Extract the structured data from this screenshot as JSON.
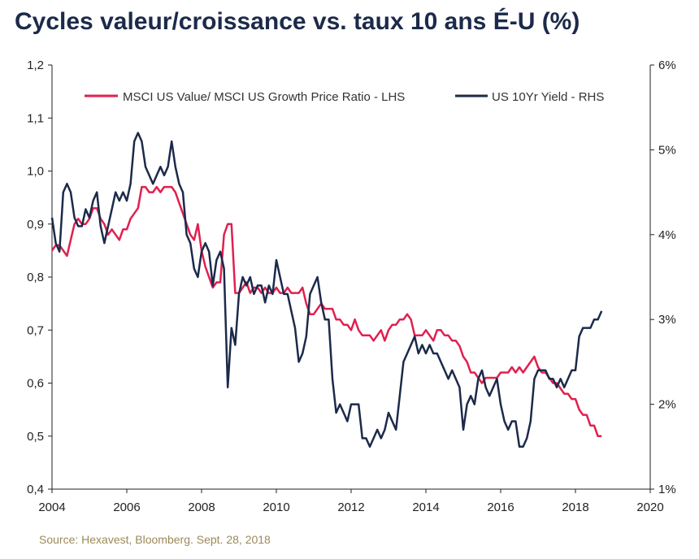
{
  "title": "Cycles valeur/croissance vs. taux 10 ans É-U (%)",
  "source": "Source: Hexavest, Bloomberg. Sept. 28, 2018",
  "colors": {
    "lhs": "#e0204f",
    "rhs": "#1c2a4a",
    "axis": "#222222"
  },
  "chart_data": {
    "type": "line",
    "xlim": [
      2004,
      2020
    ],
    "x_ticks": [
      "2004",
      "2006",
      "2008",
      "2010",
      "2012",
      "2014",
      "2016",
      "2018",
      "2020"
    ],
    "ylim_left": [
      0.4,
      1.2
    ],
    "y_ticks_left": [
      "0,4",
      "0,5",
      "0,6",
      "0,7",
      "0,8",
      "0,9",
      "1,0",
      "1,1",
      "1,2"
    ],
    "ylim_right": [
      1,
      6
    ],
    "y_ticks_right": [
      "1%",
      "2%",
      "3%",
      "4%",
      "5%",
      "6%"
    ],
    "legend_position": "top",
    "series": [
      {
        "name": "MSCI US Value/ MSCI US Growth Price Ratio - LHS",
        "axis": "left",
        "x": [
          2004.0,
          2004.1,
          2004.2,
          2004.3,
          2004.4,
          2004.5,
          2004.6,
          2004.7,
          2004.8,
          2004.9,
          2005.0,
          2005.1,
          2005.2,
          2005.3,
          2005.4,
          2005.5,
          2005.6,
          2005.7,
          2005.8,
          2005.9,
          2006.0,
          2006.1,
          2006.2,
          2006.3,
          2006.4,
          2006.5,
          2006.6,
          2006.7,
          2006.8,
          2006.9,
          2007.0,
          2007.1,
          2007.2,
          2007.3,
          2007.4,
          2007.5,
          2007.6,
          2007.7,
          2007.8,
          2007.9,
          2008.0,
          2008.1,
          2008.2,
          2008.3,
          2008.4,
          2008.5,
          2008.6,
          2008.7,
          2008.8,
          2008.9,
          2009.0,
          2009.1,
          2009.2,
          2009.3,
          2009.4,
          2009.5,
          2009.6,
          2009.7,
          2009.8,
          2009.9,
          2010.0,
          2010.1,
          2010.2,
          2010.3,
          2010.4,
          2010.5,
          2010.6,
          2010.7,
          2010.8,
          2010.9,
          2011.0,
          2011.1,
          2011.2,
          2011.3,
          2011.4,
          2011.5,
          2011.6,
          2011.7,
          2011.8,
          2011.9,
          2012.0,
          2012.1,
          2012.2,
          2012.3,
          2012.4,
          2012.5,
          2012.6,
          2012.7,
          2012.8,
          2012.9,
          2013.0,
          2013.1,
          2013.2,
          2013.3,
          2013.4,
          2013.5,
          2013.6,
          2013.7,
          2013.8,
          2013.9,
          2014.0,
          2014.1,
          2014.2,
          2014.3,
          2014.4,
          2014.5,
          2014.6,
          2014.7,
          2014.8,
          2014.9,
          2015.0,
          2015.1,
          2015.2,
          2015.3,
          2015.4,
          2015.5,
          2015.6,
          2015.7,
          2015.8,
          2015.9,
          2016.0,
          2016.1,
          2016.2,
          2016.3,
          2016.4,
          2016.5,
          2016.6,
          2016.7,
          2016.8,
          2016.9,
          2017.0,
          2017.1,
          2017.2,
          2017.3,
          2017.4,
          2017.5,
          2017.6,
          2017.7,
          2017.8,
          2017.9,
          2018.0,
          2018.1,
          2018.2,
          2018.3,
          2018.4,
          2018.5,
          2018.6,
          2018.7
        ],
        "values": [
          0.85,
          0.86,
          0.86,
          0.85,
          0.84,
          0.87,
          0.9,
          0.91,
          0.9,
          0.9,
          0.91,
          0.93,
          0.93,
          0.91,
          0.9,
          0.88,
          0.89,
          0.88,
          0.87,
          0.89,
          0.89,
          0.91,
          0.92,
          0.93,
          0.97,
          0.97,
          0.96,
          0.96,
          0.97,
          0.96,
          0.97,
          0.97,
          0.97,
          0.96,
          0.94,
          0.92,
          0.9,
          0.88,
          0.87,
          0.9,
          0.85,
          0.82,
          0.8,
          0.78,
          0.79,
          0.79,
          0.88,
          0.9,
          0.9,
          0.77,
          0.77,
          0.78,
          0.79,
          0.77,
          0.78,
          0.78,
          0.77,
          0.78,
          0.77,
          0.77,
          0.78,
          0.77,
          0.77,
          0.78,
          0.77,
          0.77,
          0.77,
          0.78,
          0.75,
          0.73,
          0.73,
          0.74,
          0.75,
          0.74,
          0.74,
          0.74,
          0.72,
          0.72,
          0.71,
          0.71,
          0.7,
          0.72,
          0.7,
          0.69,
          0.69,
          0.69,
          0.68,
          0.69,
          0.7,
          0.68,
          0.7,
          0.71,
          0.71,
          0.72,
          0.72,
          0.73,
          0.72,
          0.69,
          0.69,
          0.69,
          0.7,
          0.69,
          0.68,
          0.7,
          0.7,
          0.69,
          0.69,
          0.68,
          0.68,
          0.67,
          0.65,
          0.64,
          0.62,
          0.62,
          0.61,
          0.6,
          0.61,
          0.61,
          0.61,
          0.61,
          0.62,
          0.62,
          0.62,
          0.63,
          0.62,
          0.63,
          0.62,
          0.63,
          0.64,
          0.65,
          0.63,
          0.62,
          0.62,
          0.61,
          0.6,
          0.6,
          0.59,
          0.58,
          0.58,
          0.57,
          0.57,
          0.55,
          0.54,
          0.54,
          0.52,
          0.52,
          0.5,
          0.5
        ]
      },
      {
        "name": "US 10Yr Yield - RHS",
        "axis": "right",
        "x": [
          2004.0,
          2004.1,
          2004.2,
          2004.3,
          2004.4,
          2004.5,
          2004.6,
          2004.7,
          2004.8,
          2004.9,
          2005.0,
          2005.1,
          2005.2,
          2005.3,
          2005.4,
          2005.5,
          2005.6,
          2005.7,
          2005.8,
          2005.9,
          2006.0,
          2006.1,
          2006.2,
          2006.3,
          2006.4,
          2006.5,
          2006.6,
          2006.7,
          2006.8,
          2006.9,
          2007.0,
          2007.1,
          2007.2,
          2007.3,
          2007.4,
          2007.5,
          2007.6,
          2007.7,
          2007.8,
          2007.9,
          2008.0,
          2008.1,
          2008.2,
          2008.3,
          2008.4,
          2008.5,
          2008.6,
          2008.7,
          2008.8,
          2008.9,
          2009.0,
          2009.1,
          2009.2,
          2009.3,
          2009.4,
          2009.5,
          2009.6,
          2009.7,
          2009.8,
          2009.9,
          2010.0,
          2010.1,
          2010.2,
          2010.3,
          2010.4,
          2010.5,
          2010.6,
          2010.7,
          2010.8,
          2010.9,
          2011.0,
          2011.1,
          2011.2,
          2011.3,
          2011.4,
          2011.5,
          2011.6,
          2011.7,
          2011.8,
          2011.9,
          2012.0,
          2012.1,
          2012.2,
          2012.3,
          2012.4,
          2012.5,
          2012.6,
          2012.7,
          2012.8,
          2012.9,
          2013.0,
          2013.1,
          2013.2,
          2013.3,
          2013.4,
          2013.5,
          2013.6,
          2013.7,
          2013.8,
          2013.9,
          2014.0,
          2014.1,
          2014.2,
          2014.3,
          2014.4,
          2014.5,
          2014.6,
          2014.7,
          2014.8,
          2014.9,
          2015.0,
          2015.1,
          2015.2,
          2015.3,
          2015.4,
          2015.5,
          2015.6,
          2015.7,
          2015.8,
          2015.9,
          2016.0,
          2016.1,
          2016.2,
          2016.3,
          2016.4,
          2016.5,
          2016.6,
          2016.7,
          2016.8,
          2016.9,
          2017.0,
          2017.1,
          2017.2,
          2017.3,
          2017.4,
          2017.5,
          2017.6,
          2017.7,
          2017.8,
          2017.9,
          2018.0,
          2018.1,
          2018.2,
          2018.3,
          2018.4,
          2018.5,
          2018.6,
          2018.7
        ],
        "values": [
          4.2,
          3.9,
          3.8,
          4.5,
          4.6,
          4.5,
          4.2,
          4.1,
          4.1,
          4.3,
          4.2,
          4.4,
          4.5,
          4.1,
          3.9,
          4.1,
          4.3,
          4.5,
          4.4,
          4.5,
          4.4,
          4.6,
          5.1,
          5.2,
          5.1,
          4.8,
          4.7,
          4.6,
          4.7,
          4.8,
          4.7,
          4.8,
          5.1,
          4.8,
          4.6,
          4.5,
          4.0,
          3.9,
          3.6,
          3.5,
          3.8,
          3.9,
          3.8,
          3.4,
          3.7,
          3.8,
          3.6,
          2.2,
          2.9,
          2.7,
          3.3,
          3.5,
          3.4,
          3.5,
          3.3,
          3.4,
          3.4,
          3.2,
          3.4,
          3.3,
          3.7,
          3.5,
          3.3,
          3.3,
          3.1,
          2.9,
          2.5,
          2.6,
          2.8,
          3.3,
          3.4,
          3.5,
          3.2,
          3.0,
          3.0,
          2.3,
          1.9,
          2.0,
          1.9,
          1.8,
          2.0,
          2.0,
          2.0,
          1.6,
          1.6,
          1.5,
          1.6,
          1.7,
          1.6,
          1.7,
          1.9,
          1.8,
          1.7,
          2.1,
          2.5,
          2.6,
          2.7,
          2.8,
          2.6,
          2.7,
          2.6,
          2.7,
          2.6,
          2.6,
          2.5,
          2.4,
          2.3,
          2.4,
          2.3,
          2.2,
          1.7,
          2.0,
          2.1,
          2.0,
          2.3,
          2.4,
          2.2,
          2.1,
          2.2,
          2.3,
          2.0,
          1.8,
          1.7,
          1.8,
          1.8,
          1.5,
          1.5,
          1.6,
          1.8,
          2.3,
          2.4,
          2.4,
          2.4,
          2.3,
          2.3,
          2.2,
          2.3,
          2.2,
          2.3,
          2.4,
          2.4,
          2.8,
          2.9,
          2.9,
          2.9,
          3.0,
          3.0,
          3.1
        ]
      }
    ]
  }
}
